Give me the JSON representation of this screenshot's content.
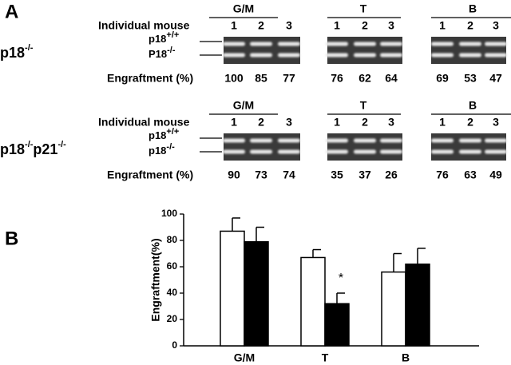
{
  "panel_a": {
    "label": "A",
    "rows": [
      {
        "genotype": [
          {
            "text": "p18",
            "sup": "-/-"
          }
        ],
        "individual_label": "Individual mouse",
        "bands": [
          {
            "text": "p18",
            "sup": "+/+"
          },
          {
            "text": "P18",
            "sup": "-/-"
          }
        ],
        "engraftment_label": "Engraftment (%)",
        "groups": [
          {
            "name": "G/M",
            "mice": [
              "1",
              "2",
              "3"
            ],
            "engraftment": [
              100,
              85,
              77
            ]
          },
          {
            "name": "T",
            "mice": [
              "1",
              "2",
              "3"
            ],
            "engraftment": [
              76,
              62,
              64
            ]
          },
          {
            "name": "B",
            "mice": [
              "1",
              "2",
              "3"
            ],
            "engraftment": [
              69,
              53,
              47
            ]
          }
        ]
      },
      {
        "genotype": [
          {
            "text": "p18",
            "sup": "-/-"
          },
          {
            "text": "p21",
            "sup": "-/-"
          }
        ],
        "individual_label": "Individual mouse",
        "bands": [
          {
            "text": "p18",
            "sup": "+/+"
          },
          {
            "text": "p18",
            "sup": "-/-"
          }
        ],
        "engraftment_label": "Engraftment (%)",
        "groups": [
          {
            "name": "G/M",
            "mice": [
              "1",
              "2",
              "3"
            ],
            "engraftment": [
              90,
              73,
              74
            ]
          },
          {
            "name": "T",
            "mice": [
              "1",
              "2",
              "3"
            ],
            "engraftment": [
              35,
              37,
              26
            ]
          },
          {
            "name": "B",
            "mice": [
              "1",
              "2",
              "3"
            ],
            "engraftment": [
              76,
              63,
              49
            ]
          }
        ]
      }
    ]
  },
  "panel_b_label": "B",
  "chart_data": {
    "type": "bar",
    "y_label": "Engraftment(%)",
    "categories": [
      "G/M",
      "T",
      "B"
    ],
    "series": [
      {
        "color": "#ffffff",
        "values": [
          87,
          67,
          56
        ],
        "errors": [
          10,
          6,
          14
        ]
      },
      {
        "color": "#000000",
        "values": [
          79,
          32,
          62
        ],
        "errors": [
          11,
          8,
          12
        ]
      }
    ],
    "ylim": [
      0,
      100
    ],
    "yticks": [
      0,
      20,
      40,
      60,
      80,
      100
    ],
    "annotations": [
      {
        "text": "*",
        "series": 1,
        "category": 1
      }
    ]
  }
}
